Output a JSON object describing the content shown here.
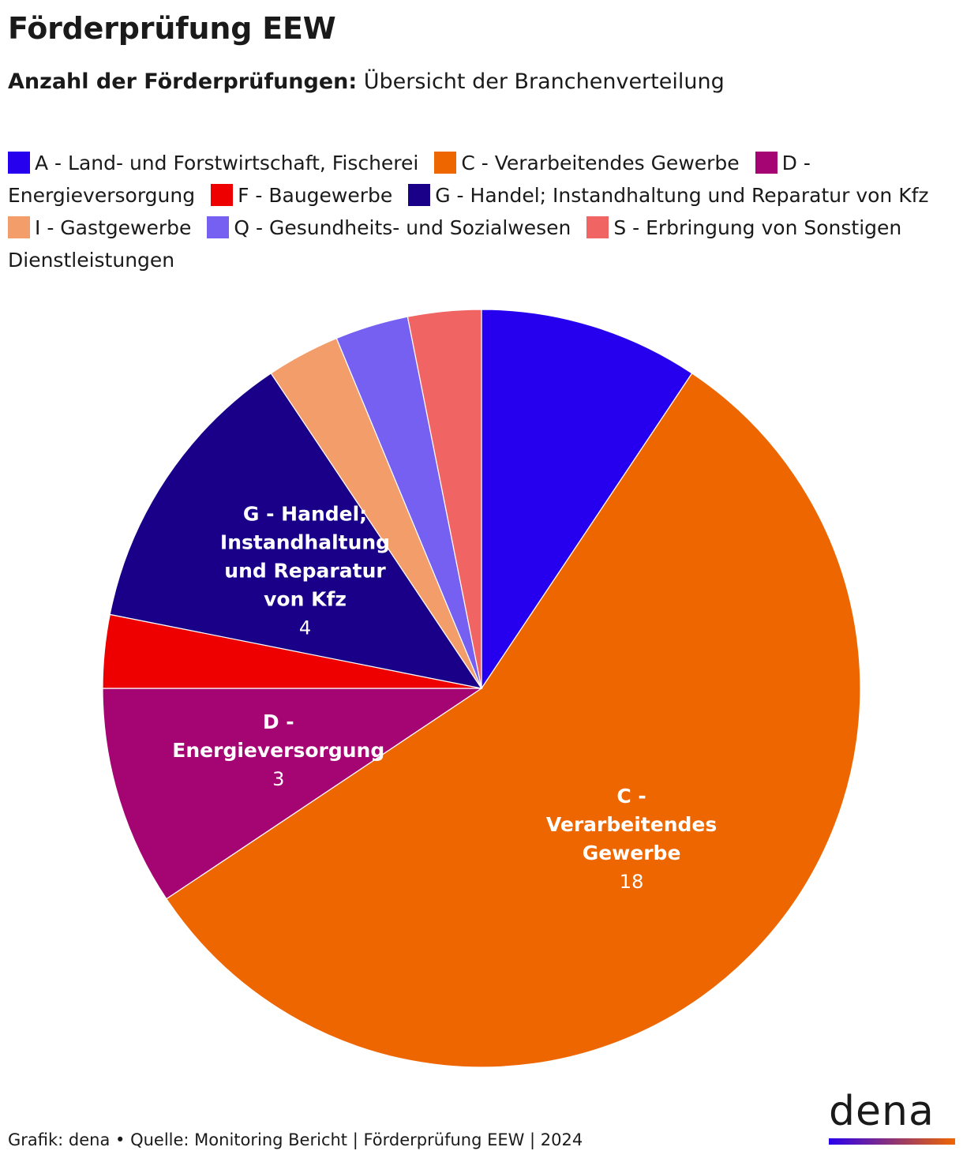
{
  "header": {
    "title": "Förderprüfung EEW",
    "subtitle_bold": "Anzahl der Förderprüfungen:",
    "subtitle_rest": "Übersicht der Branchenverteilung"
  },
  "chart_data": {
    "type": "pie",
    "title": "Förderprüfung EEW",
    "subtitle": "Anzahl der Förderprüfungen: Übersicht der Branchenverteilung",
    "legend_position": "top",
    "slices": [
      {
        "name": "A - Land- und Forstwirtschaft, Fischerei",
        "value": 3,
        "color": "#2600EE",
        "shown_label": false
      },
      {
        "name": "C - Verarbeitendes Gewerbe",
        "value": 18,
        "color": "#EE6600",
        "shown_label": true,
        "label_lines": [
          "C -",
          "Verarbeitendes",
          "Gewerbe"
        ],
        "value_label": "18"
      },
      {
        "name": "D - Energieversorgung",
        "value": 3,
        "color": "#A50473",
        "shown_label": true,
        "label_lines": [
          "D -",
          "Energieversorgung"
        ],
        "value_label": "3"
      },
      {
        "name": "F - Baugewerbe",
        "value": 1,
        "color": "#EE0000",
        "shown_label": false
      },
      {
        "name": "G - Handel; Instandhaltung und Reparatur von Kfz",
        "value": 4,
        "color": "#1A0089",
        "shown_label": true,
        "label_lines": [
          "G - Handel;",
          "Instandhaltung",
          "und Reparatur",
          "von Kfz"
        ],
        "value_label": "4"
      },
      {
        "name": "I - Gastgewerbe",
        "value": 1,
        "color": "#F29D6A",
        "shown_label": false
      },
      {
        "name": "Q - Gesundheits- und Sozialwesen",
        "value": 1,
        "color": "#7560F2",
        "shown_label": false
      },
      {
        "name": "S - Erbringung von Sonstigen Dienstleistungen",
        "value": 1,
        "color": "#F06464",
        "shown_label": false
      }
    ]
  },
  "footer": {
    "text": "Grafik: dena • Quelle: Monitoring Bericht | Förderprüfung EEW | 2024"
  },
  "logo": {
    "text": "dena"
  }
}
